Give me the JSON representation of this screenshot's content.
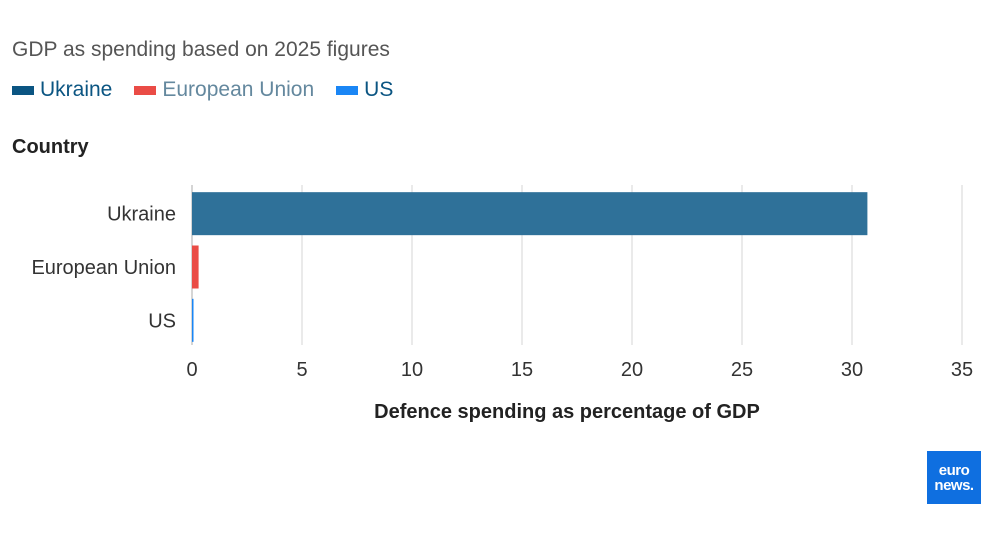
{
  "subtitle": "GDP as spending based on 2025 figures",
  "legend": [
    {
      "label": "Ukraine",
      "color": "#0b5582",
      "text_color": "#0b5582"
    },
    {
      "label": "European Union",
      "color": "#ea4c46",
      "text_color": "#64889e"
    },
    {
      "label": "US",
      "color": "#1a86f5",
      "text_color": "#0b5582"
    }
  ],
  "chart_data": {
    "type": "bar",
    "orientation": "horizontal",
    "categories": [
      "Ukraine",
      "European Union",
      "US"
    ],
    "values": [
      30.7,
      0.3,
      0.05
    ],
    "colors": [
      "#2f7199",
      "#ea4c46",
      "#1a86f5"
    ],
    "xlabel": "Defence spending as percentage of GDP",
    "ylabel": "Country",
    "xlim": [
      0,
      35
    ],
    "xticks": [
      0,
      5,
      10,
      15,
      20,
      25,
      30,
      35
    ],
    "grid": true,
    "legend_position": "top-left"
  },
  "logo": {
    "line1": "euro",
    "line2": "news."
  }
}
